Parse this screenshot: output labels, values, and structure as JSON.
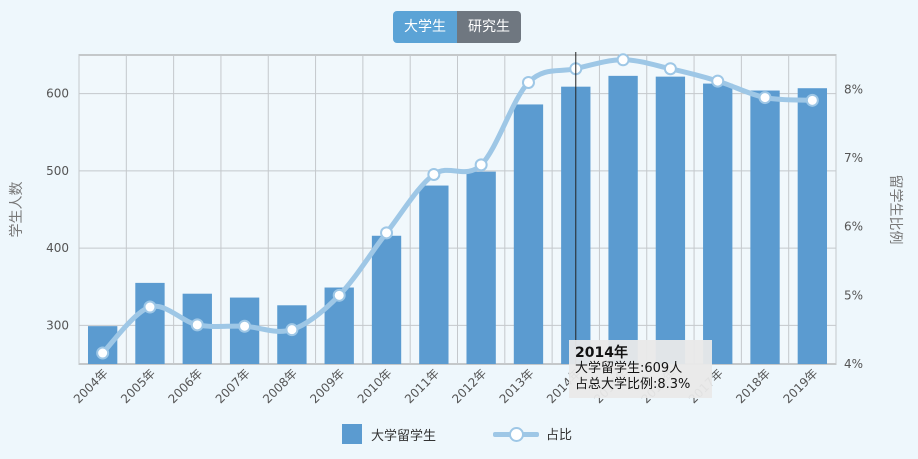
{
  "tabs": [
    {
      "label": "大学生",
      "active": true
    },
    {
      "label": "研究生",
      "active": false
    }
  ],
  "colors": {
    "bar": "#5b9bd0",
    "line": "#9ec7e6",
    "tab_active": "#5ba3d6",
    "tab_inactive": "#6f7780"
  },
  "chart_data": {
    "type": "bar",
    "categories": [
      "2004年",
      "2005年",
      "2006年",
      "2007年",
      "2008年",
      "2009年",
      "2010年",
      "2011年",
      "2012年",
      "2013年",
      "2014年",
      "2015年",
      "2016年",
      "2017年",
      "2018年",
      "2019年"
    ],
    "series": [
      {
        "name": "大学留学生",
        "type": "bar",
        "axis": "left",
        "values": [
          299,
          355,
          341,
          336,
          326,
          349,
          416,
          481,
          499,
          586,
          609,
          623,
          622,
          613,
          604,
          607
        ]
      },
      {
        "name": "占比",
        "type": "line",
        "axis": "right",
        "values": [
          4.16,
          4.83,
          4.57,
          4.55,
          4.5,
          5.0,
          5.91,
          6.76,
          6.9,
          8.1,
          8.3,
          8.43,
          8.3,
          8.12,
          7.88,
          7.84
        ]
      }
    ],
    "ylabel": "学生人数",
    "y2label": "留学生比例",
    "ylim": [
      250,
      650
    ],
    "y2lim": [
      4,
      8.5
    ],
    "yticks": [
      300,
      400,
      500,
      600
    ],
    "y2ticks": [
      "4%",
      "5%",
      "6%",
      "7%",
      "8%"
    ],
    "grid": true,
    "legend_position": "bottom"
  },
  "tooltip": {
    "title": "2014年",
    "line1": "大学留学生:609人",
    "line2": "占总大学比例:8.3%"
  }
}
